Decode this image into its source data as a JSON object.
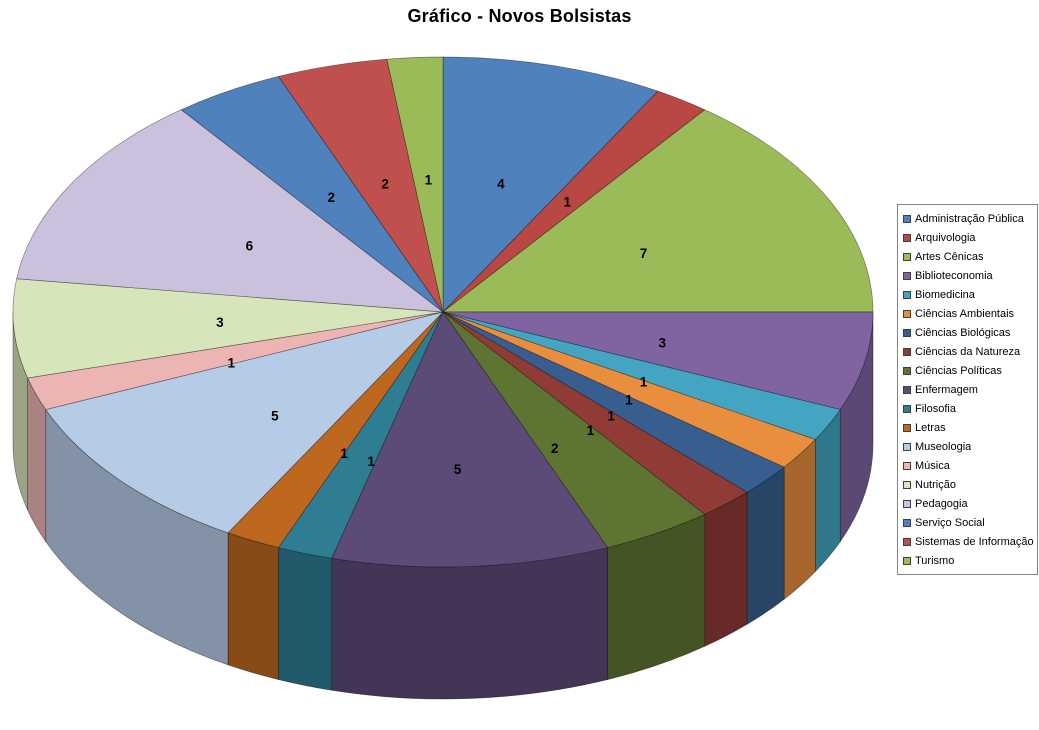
{
  "chart_data": {
    "type": "pie",
    "style": "3d",
    "title": "Gráfico - Novos Bolsistas",
    "legend_position": "right",
    "data_labels_shown": true,
    "categories": [
      "Administração Pública",
      "Arquivologia",
      "Artes Cênicas",
      "Biblioteconomia",
      "Biomedicina",
      "Ciências Ambientais",
      "Ciências Biológicas",
      "Ciências da Natureza",
      "Ciências Políticas",
      "Enfermagem",
      "Filosofia",
      "Letras",
      "Museologia",
      "Música",
      "Nutrição",
      "Pedagogia",
      "Serviço Social",
      "Sistemas de Informação",
      "Turismo"
    ],
    "values": [
      4,
      1,
      7,
      3,
      1,
      1,
      1,
      1,
      2,
      5,
      1,
      1,
      5,
      1,
      3,
      6,
      2,
      2,
      1
    ],
    "colors": [
      "#4F81BD",
      "#B94743",
      "#9BBB59",
      "#8064A2",
      "#44A5C3",
      "#E88E3E",
      "#375E8E",
      "#913B37",
      "#5E7433",
      "#5C4A77",
      "#2E7D93",
      "#BD671F",
      "#B6CBE6",
      "#ECB5B4",
      "#D7E5BA",
      "#CCC1DC",
      "#4F81BD",
      "#C0504D",
      "#9BBB59"
    ],
    "background_color": "#FFFFFF"
  }
}
